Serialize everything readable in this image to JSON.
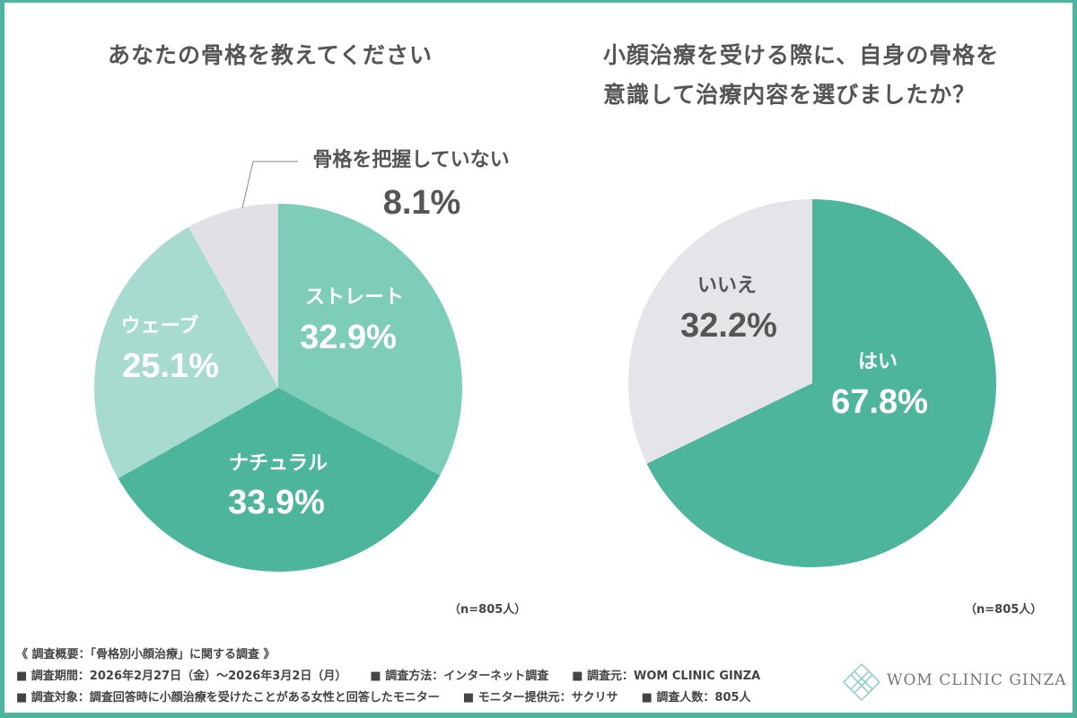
{
  "chart_data": [
    {
      "type": "pie",
      "title": "あなたの骨格を教えてください",
      "n_label": "（n=805人）",
      "direction": "clockwise from top",
      "slices": [
        {
          "label": "ストレート",
          "value": 32.9,
          "display": "32.9%",
          "color": "#7ecdb8"
        },
        {
          "label": "ナチュラル",
          "value": 33.9,
          "display": "33.9%",
          "color": "#4db59c"
        },
        {
          "label": "ウェーブ",
          "value": 25.1,
          "display": "25.1%",
          "color": "#a8dbd0"
        },
        {
          "label": "骨格を把握していない",
          "value": 8.1,
          "display": "8.1%",
          "color": "#e1e0e4"
        }
      ]
    },
    {
      "type": "pie",
      "title_lines": [
        "小顔治療を受ける際に、自身の骨格を",
        "意識して治療内容を選びましたか？"
      ],
      "n_label": "（n=805人）",
      "direction": "clockwise from top",
      "slices": [
        {
          "label": "はい",
          "value": 67.8,
          "display": "67.8%",
          "color": "#4db59c"
        },
        {
          "label": "いいえ",
          "value": 32.2,
          "display": "32.2%",
          "color": "#e5e4e8"
        }
      ]
    }
  ],
  "footer": {
    "heading": "《 調査概要：「骨格別小顔治療」に関する調査 》",
    "row1": [
      "■ 調査期間：2026年2月27日（金）～2026年3月2日（月）",
      "■ 調査方法：インターネット調査",
      "■ 調査元：WOM CLINIC GINZA"
    ],
    "row2": [
      "■ 調査対象：調査回答時に小顔治療を受けたことがある女性と回答したモニター",
      "■ モニター提供元：サクリサ",
      "■ 調査人数：805人"
    ]
  },
  "logo": {
    "text": "WOM CLINIC GINZA",
    "color": "#8fcfc3"
  },
  "frame_color": "#4db59c"
}
